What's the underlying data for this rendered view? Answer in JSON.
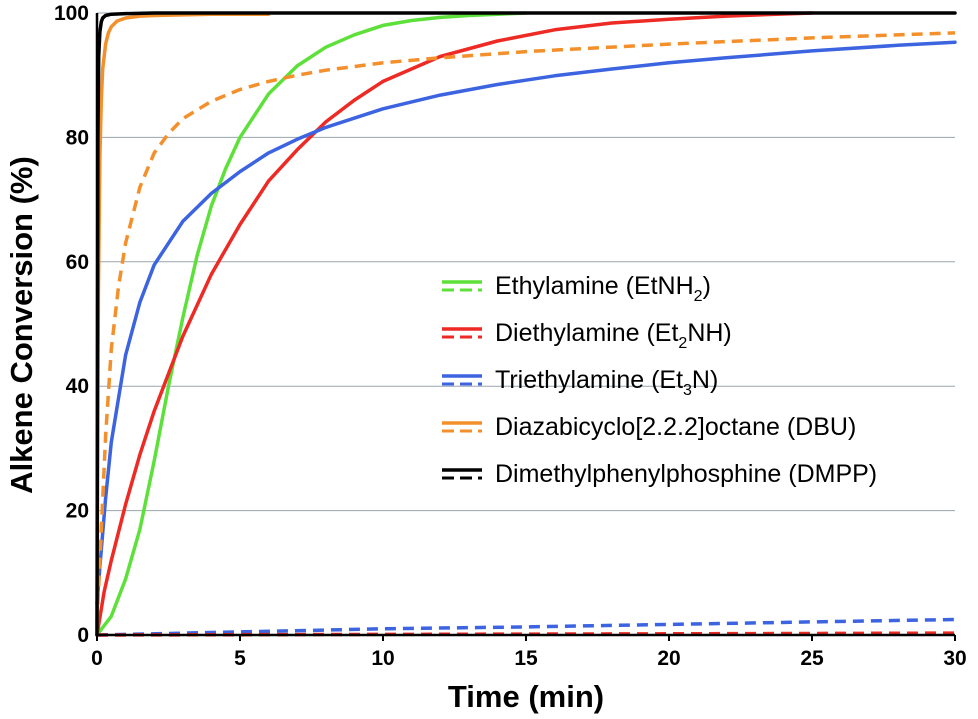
{
  "chart_data": {
    "type": "line",
    "xlabel": "Time (min)",
    "ylabel": "Alkene Conversion (%)",
    "xlim": [
      0,
      30
    ],
    "ylim": [
      0,
      100
    ],
    "xticks": [
      0,
      5,
      10,
      15,
      20,
      25,
      30
    ],
    "yticks": [
      0,
      20,
      40,
      60,
      80,
      100
    ],
    "grid": "horizontal",
    "legend_position": "center-right",
    "colors": {
      "ethylamine": "#5ee03a",
      "diethylamine": "#ee2a24",
      "triethylamine": "#3c64e0",
      "dbu": "#f4902c",
      "dmpp": "#000000"
    },
    "legend": [
      {
        "id": "ethylamine",
        "prefix": "Ethylamine (EtNH",
        "sub": "2",
        "suffix": ")",
        "color": "#5ee03a"
      },
      {
        "id": "diethylamine",
        "prefix": "Diethylamine (Et",
        "sub": "2",
        "suffix": "NH)",
        "color": "#ee2a24"
      },
      {
        "id": "triethylamine",
        "prefix": "Triethylamine (Et",
        "sub": "3",
        "suffix": "N)",
        "color": "#3c64e0"
      },
      {
        "id": "dbu",
        "prefix": "Diazabicyclo[2.2.2]octane (DBU)",
        "sub": "",
        "suffix": "",
        "color": "#f4902c"
      },
      {
        "id": "dmpp",
        "prefix": "Dimethylphenylphosphine (DMPP)",
        "sub": "",
        "suffix": "",
        "color": "#000000"
      }
    ],
    "series": [
      {
        "id": "ethylamine",
        "style": "solid",
        "color": "#5ee03a",
        "x": [
          0,
          0.5,
          1,
          1.5,
          2,
          2.5,
          3,
          3.5,
          4,
          4.5,
          5,
          6,
          7,
          8,
          9,
          10,
          11,
          12,
          13,
          14,
          15
        ],
        "y": [
          0,
          3,
          9,
          17,
          28,
          40,
          51,
          61,
          69,
          75,
          80,
          87,
          91.5,
          94.5,
          96.5,
          98,
          98.8,
          99.3,
          99.6,
          99.8,
          100
        ]
      },
      {
        "id": "diethylamine",
        "style": "solid",
        "color": "#ee2a24",
        "x": [
          0,
          0.25,
          0.5,
          1,
          1.5,
          2,
          3,
          4,
          5,
          6,
          7,
          8,
          9,
          10,
          12,
          14,
          16,
          18,
          20,
          22,
          25
        ],
        "y": [
          0,
          7,
          12,
          21,
          29,
          36,
          48,
          58,
          66,
          73,
          78,
          82.5,
          86,
          89,
          93,
          95.5,
          97.3,
          98.4,
          99,
          99.5,
          100
        ]
      },
      {
        "id": "triethylamine",
        "style": "solid",
        "color": "#3c64e0",
        "x": [
          0,
          0.1,
          0.3,
          0.5,
          1,
          1.5,
          2,
          3,
          4,
          5,
          6,
          7,
          8,
          10,
          12,
          14,
          16,
          18,
          20,
          22,
          25,
          28,
          30
        ],
        "y": [
          5,
          11,
          22,
          31,
          45,
          53.5,
          59.5,
          66.5,
          71,
          74.5,
          77.5,
          79.7,
          81.6,
          84.6,
          86.8,
          88.5,
          89.9,
          91,
          92,
          92.8,
          93.9,
          94.8,
          95.3
        ]
      },
      {
        "id": "dbu",
        "style": "solid",
        "color": "#f4902c",
        "x": [
          0,
          0.05,
          0.1,
          0.15,
          0.2,
          0.3,
          0.4,
          0.5,
          0.7,
          1,
          1.5,
          2,
          3,
          4,
          5,
          6
        ],
        "y": [
          0,
          55,
          77,
          86,
          91,
          95,
          96.8,
          97.8,
          98.7,
          99.2,
          99.5,
          99.6,
          99.7,
          99.8,
          99.8,
          99.8
        ]
      },
      {
        "id": "dbu-dashed",
        "style": "dashed",
        "color": "#f4902c",
        "x": [
          0,
          0.1,
          0.3,
          0.5,
          0.75,
          1,
          1.5,
          2,
          2.5,
          3,
          4,
          5,
          6,
          7,
          8,
          10,
          12,
          15,
          20,
          25,
          30
        ],
        "y": [
          2,
          12,
          32,
          46,
          56,
          63,
          72,
          77.5,
          80.6,
          83,
          85.8,
          87.7,
          89,
          90,
          90.8,
          92,
          92.8,
          93.8,
          95,
          96,
          96.8
        ]
      },
      {
        "id": "triethylamine-dashed",
        "style": "dashed",
        "color": "#3c64e0",
        "x": [
          0,
          5,
          10,
          15,
          20,
          25,
          30
        ],
        "y": [
          0,
          0.5,
          1,
          1.3,
          1.7,
          2.1,
          2.5
        ]
      },
      {
        "id": "diethylamine-dashed",
        "style": "dashed",
        "color": "#ee2a24",
        "x": [
          0,
          10,
          20,
          30
        ],
        "y": [
          0,
          0.1,
          0.2,
          0.3
        ]
      },
      {
        "id": "dmpp",
        "style": "solid",
        "color": "#000000",
        "x": [
          0,
          0.03,
          0.06,
          0.1,
          0.15,
          0.2,
          0.3,
          0.5,
          1,
          2,
          5,
          10,
          20,
          30
        ],
        "y": [
          0,
          80,
          93,
          97,
          98.6,
          99.2,
          99.6,
          99.8,
          99.9,
          100,
          100,
          100,
          100,
          100
        ]
      }
    ]
  }
}
